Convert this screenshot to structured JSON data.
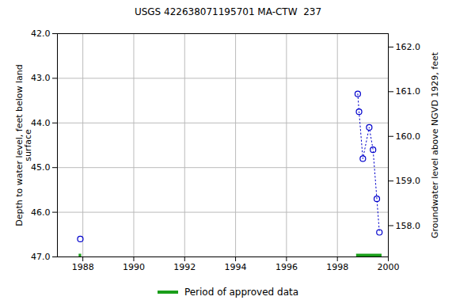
{
  "chart_data": {
    "type": "scatter",
    "title": "USGS 422638071195701 MA-CTW  237",
    "y_label": "Depth to water level, feet below land\nsurface",
    "y2_label": "Groundwater level above NGVD 1929, feet",
    "x": [
      1987.9,
      1993,
      1998.8,
      1998.85,
      1999.0,
      1999.25,
      1999.4,
      1999.55,
      1999.65
    ],
    "values": [
      46.6,
      null,
      43.35,
      43.75,
      44.8,
      44.1,
      44.6,
      45.7,
      46.45
    ],
    "color": "#0000cc",
    "marker": "circle",
    "line_style": "dotted",
    "xlim": [
      1987,
      2000
    ],
    "xticks": [
      1988,
      1990,
      1992,
      1994,
      1996,
      1998,
      2000
    ],
    "ylim": [
      42,
      47
    ],
    "yticks": [
      {
        "value": 42,
        "label": "42.0"
      },
      {
        "value": 43,
        "label": "43.0"
      },
      {
        "value": 44,
        "label": "44.0"
      },
      {
        "value": 45,
        "label": "45.0"
      },
      {
        "value": 46,
        "label": "46.0"
      },
      {
        "value": 47,
        "label": "47.0"
      }
    ],
    "y2lim": [
      162.3,
      157.3
    ],
    "y2ticks": [
      {
        "value": 158,
        "label": "158.0"
      },
      {
        "value": 159,
        "label": "159.0"
      },
      {
        "value": 160,
        "label": "160.0"
      },
      {
        "value": 161,
        "label": "161.0"
      },
      {
        "value": 162,
        "label": "162.0"
      }
    ],
    "grid": true,
    "approved_periods": {
      "name": "Period of approved data",
      "color": "#1a9e1a",
      "start": [
        1987.85,
        1998.75
      ],
      "end": [
        1987.95,
        1999.75
      ]
    }
  }
}
